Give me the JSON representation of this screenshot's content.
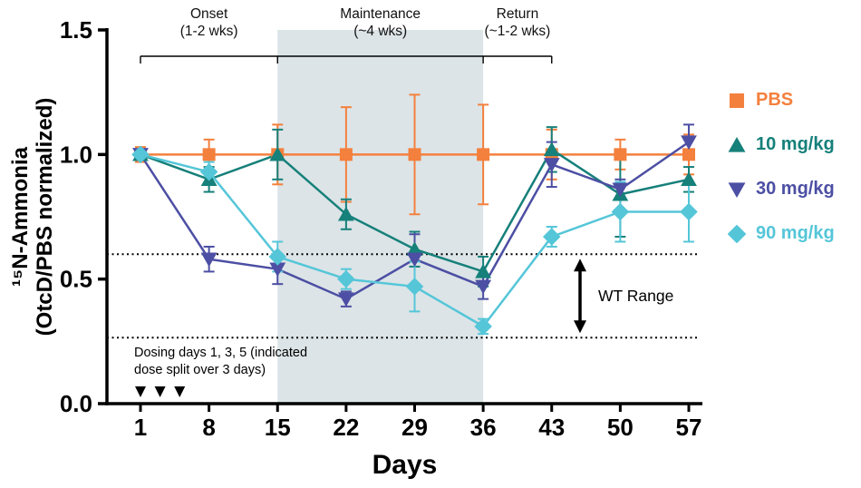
{
  "chart_data": {
    "type": "line",
    "x": [
      1,
      8,
      15,
      22,
      29,
      36,
      43,
      50,
      57
    ],
    "xlabel": "Days",
    "ylabel_lines": [
      "¹⁵N-Ammonia",
      "(OtcD/PBS normalized)"
    ],
    "ylim": [
      0,
      1.5
    ],
    "yticks": [
      "0.0",
      "0.5",
      "1.0",
      "1.5"
    ],
    "ytick_values": [
      0,
      0.5,
      1.0,
      1.5
    ],
    "grid": false,
    "legend_position": "right",
    "series": [
      {
        "name": "PBS",
        "marker": "square",
        "color": "#F4803D",
        "values": [
          1.0,
          1.0,
          1.0,
          1.0,
          1.0,
          1.0,
          1.0,
          1.0,
          1.0
        ],
        "errors": [
          0.03,
          0.06,
          0.12,
          0.19,
          0.24,
          0.2,
          0.1,
          0.06,
          0.08
        ]
      },
      {
        "name": "10 mg/kg",
        "marker": "triangle-up",
        "color": "#16807A",
        "values": [
          1.0,
          0.9,
          1.0,
          0.76,
          0.62,
          0.53,
          1.02,
          0.84,
          0.9
        ],
        "errors": [
          0.02,
          0.05,
          0.1,
          0.06,
          0.07,
          0.06,
          0.09,
          0.17,
          0.05
        ]
      },
      {
        "name": "30 mg/kg",
        "marker": "triangle-down",
        "color": "#4C4FA3",
        "values": [
          1.0,
          0.58,
          0.54,
          0.42,
          0.58,
          0.47,
          0.96,
          0.86,
          1.05
        ],
        "errors": [
          0.02,
          0.05,
          0.06,
          0.03,
          0.1,
          0.05,
          0.09,
          0.04,
          0.07
        ]
      },
      {
        "name": "90 mg/kg",
        "marker": "diamond",
        "color": "#55C6D8",
        "values": [
          1.0,
          0.93,
          0.59,
          0.5,
          0.47,
          0.31,
          0.67,
          0.77,
          0.77
        ],
        "errors": [
          0.02,
          0.04,
          0.06,
          0.04,
          0.1,
          0.03,
          0.04,
          0.12,
          0.12
        ]
      }
    ],
    "phases": [
      {
        "label": "Onset",
        "sublabel": "(1-2 wks)",
        "start_day": 1,
        "end_day": 15
      },
      {
        "label": "Maintenance",
        "sublabel": "(~4 wks)",
        "start_day": 15,
        "end_day": 36
      },
      {
        "label": "Return",
        "sublabel": "(~1-2 wks)",
        "start_day": 36,
        "end_day": 43
      }
    ],
    "shaded_region": {
      "start_day": 15,
      "end_day": 36,
      "color": "#DCE4E7"
    },
    "wt_range": {
      "label": "WT Range",
      "upper": 0.6,
      "lower": 0.265
    },
    "dosing_note": {
      "line1": "Dosing days 1, 3, 5 (indicated",
      "line2": "dose split over 3 days)",
      "arrow_days": [
        1,
        3,
        5
      ]
    }
  }
}
